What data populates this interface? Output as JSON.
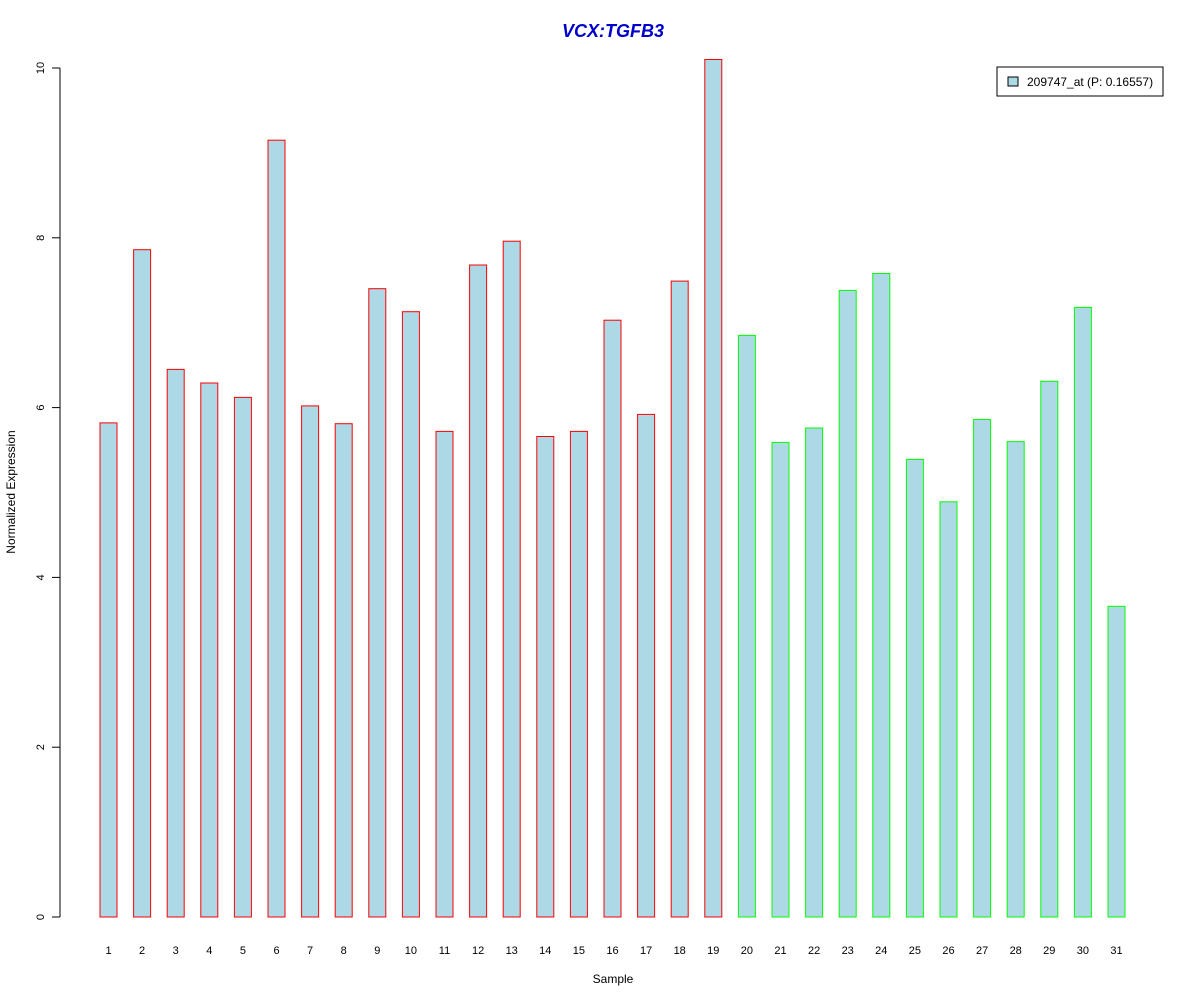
{
  "chart_data": {
    "type": "bar",
    "title": "VCX:TGFB3",
    "xlabel": "Sample",
    "ylabel": "Normalized Expression",
    "ylim": [
      0,
      10
    ],
    "yticks": [
      "0",
      "2",
      "4",
      "6",
      "8",
      "10"
    ],
    "categories": [
      "1",
      "2",
      "3",
      "4",
      "5",
      "6",
      "7",
      "8",
      "9",
      "10",
      "11",
      "12",
      "13",
      "14",
      "15",
      "16",
      "17",
      "18",
      "19",
      "20",
      "21",
      "22",
      "23",
      "24",
      "25",
      "26",
      "27",
      "28",
      "29",
      "30",
      "31"
    ],
    "series": [
      {
        "name": "209747_at (P: 0.16557)",
        "values": [
          5.82,
          7.86,
          6.45,
          6.29,
          6.12,
          9.15,
          6.02,
          5.81,
          7.4,
          7.13,
          5.72,
          7.68,
          7.96,
          5.66,
          5.72,
          7.03,
          5.92,
          7.49,
          10.1,
          6.85,
          5.59,
          5.76,
          7.38,
          7.58,
          5.39,
          4.89,
          5.86,
          5.6,
          6.31,
          7.18,
          3.66
        ]
      }
    ],
    "groups": [
      "red",
      "red",
      "red",
      "red",
      "red",
      "red",
      "red",
      "red",
      "red",
      "red",
      "red",
      "red",
      "red",
      "red",
      "red",
      "red",
      "red",
      "red",
      "red",
      "green",
      "green",
      "green",
      "green",
      "green",
      "green",
      "green",
      "green",
      "green",
      "green",
      "green",
      "green"
    ],
    "colors": {
      "bar_fill": "#add8e6",
      "red": "#ff0000",
      "green": "#00ff00",
      "title": "#0000cc",
      "axis": "#000000"
    },
    "legend": {
      "position": "top-right",
      "label": "209747_at (P: 0.16557)"
    },
    "grid": false
  }
}
